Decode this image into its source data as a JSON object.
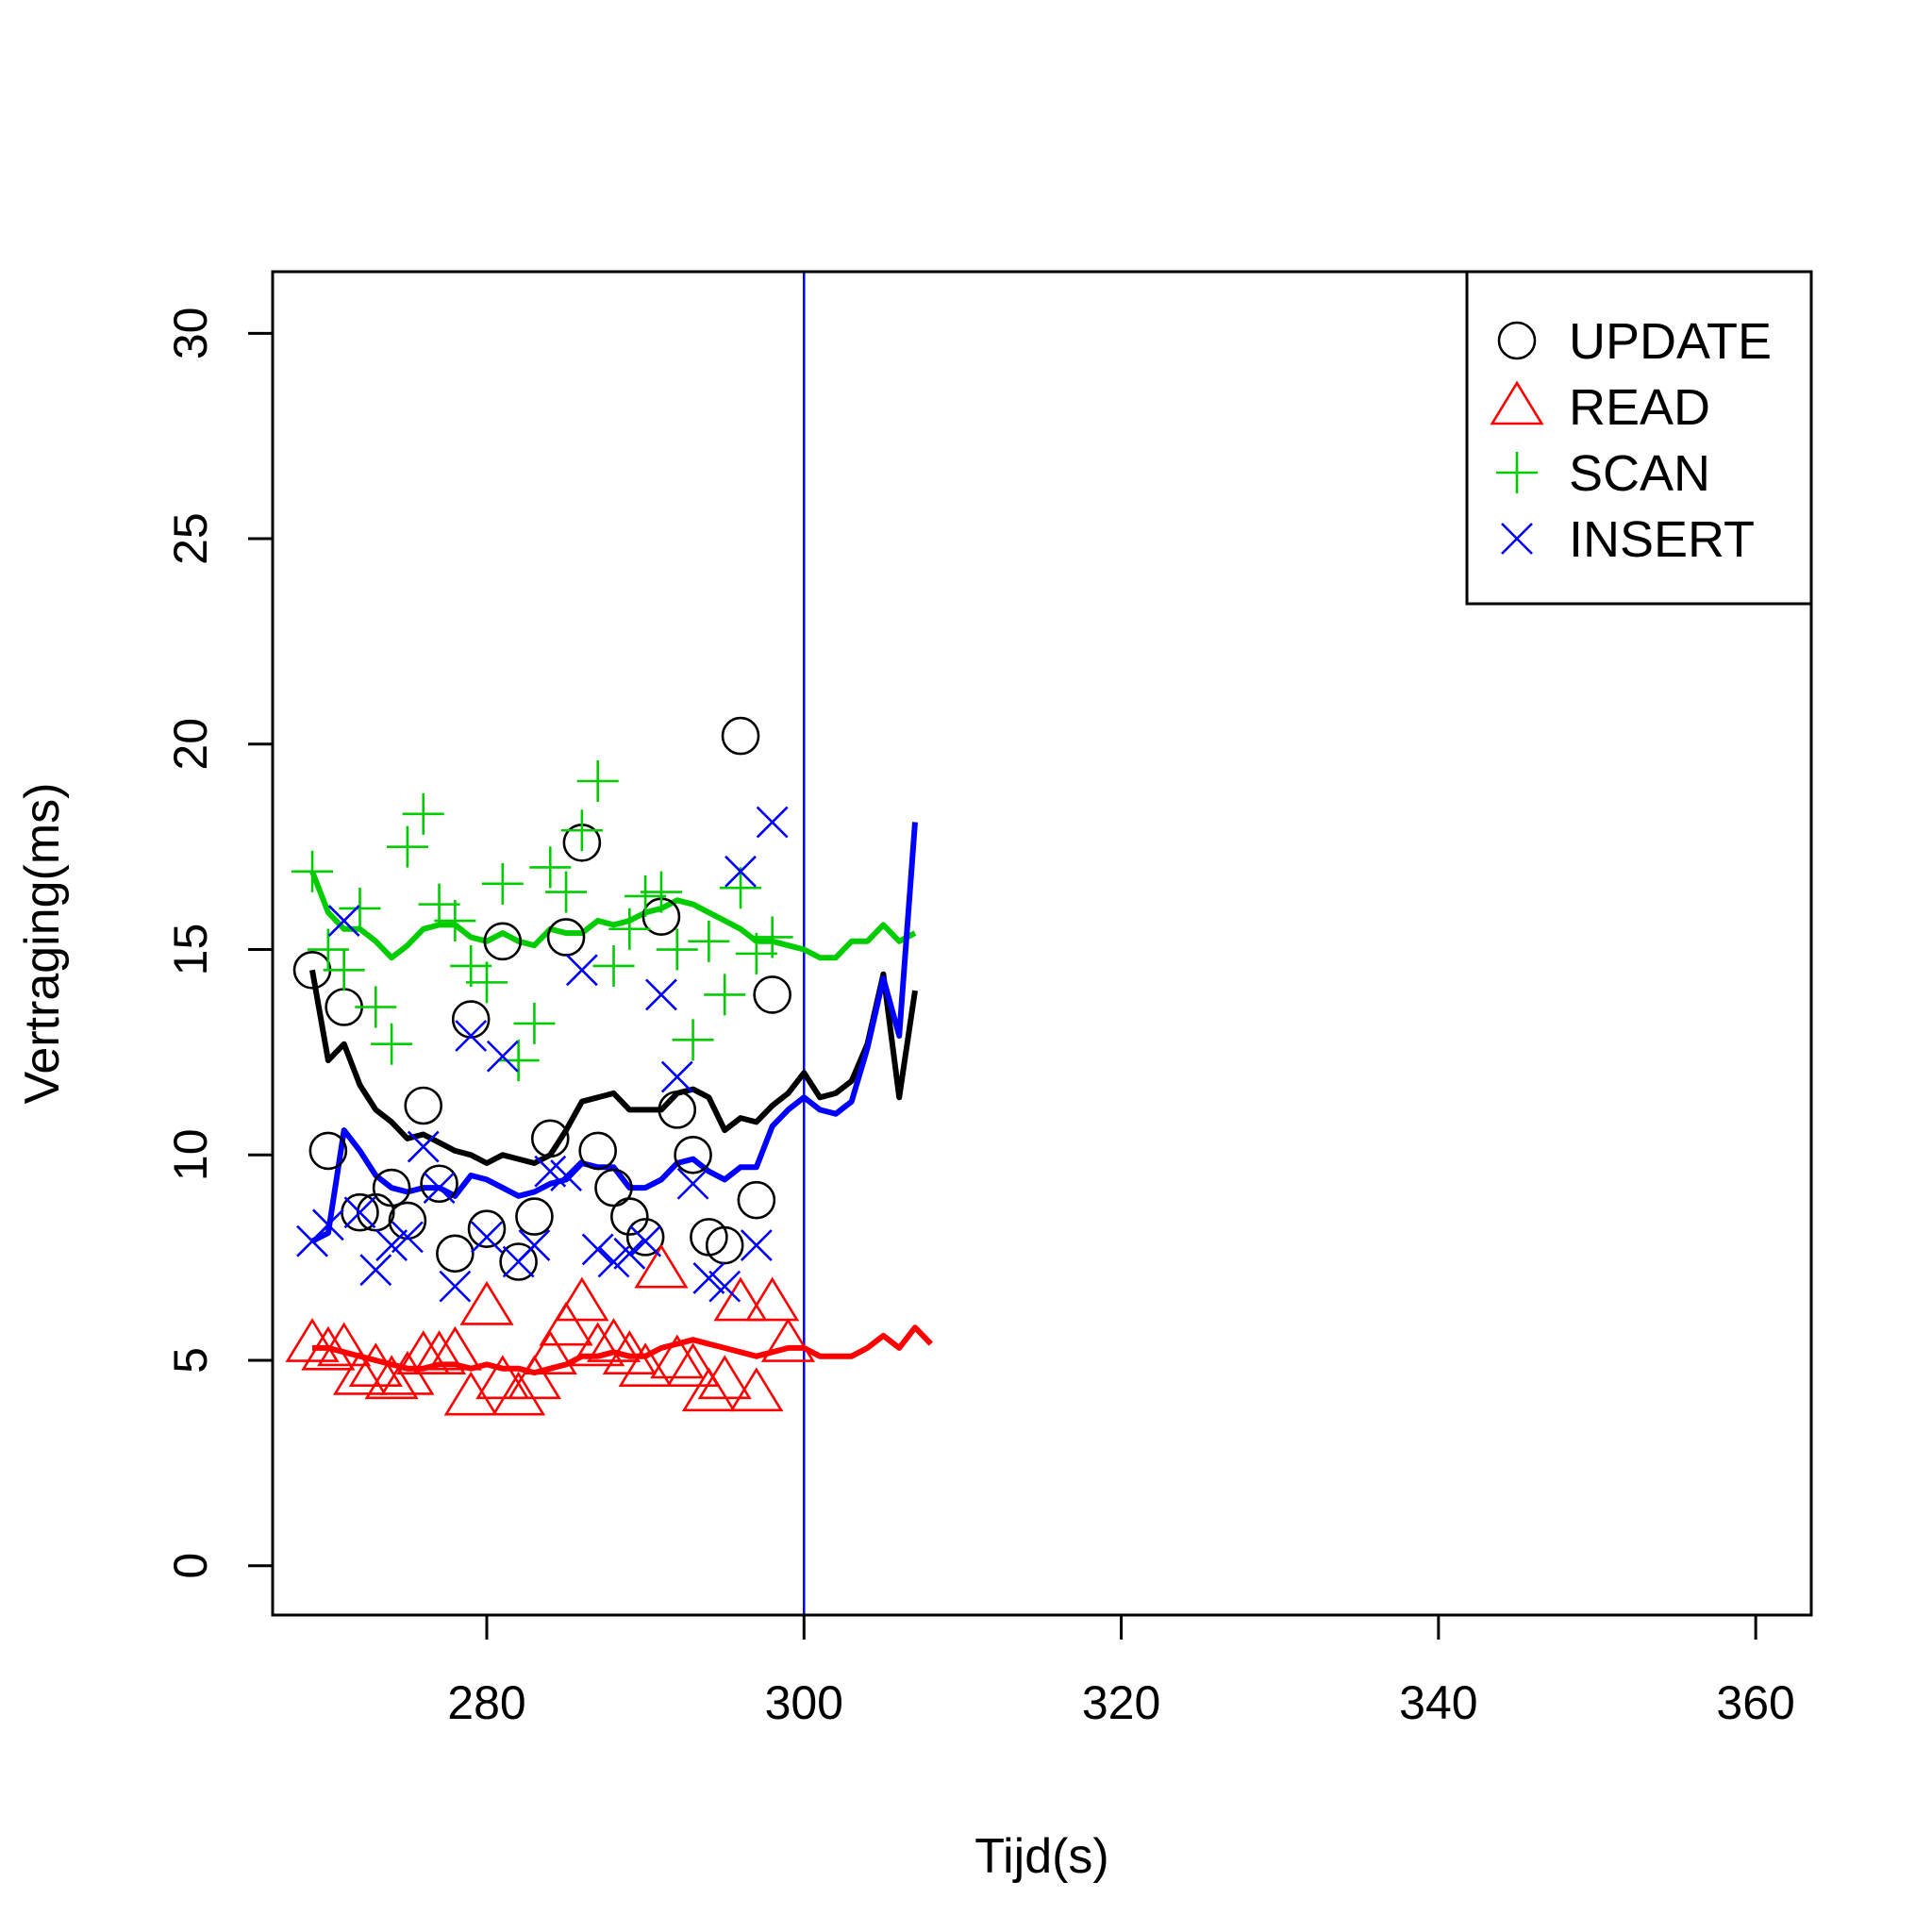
{
  "chart_data": {
    "type": "scatter",
    "title": "",
    "xlabel": "Tijd(s)",
    "ylabel": "Vertraging(ms)",
    "xlim": [
      266.5,
      363.5
    ],
    "ylim": [
      -1.2,
      31.5
    ],
    "xticks": [
      280,
      300,
      320,
      340,
      360
    ],
    "yticks": [
      0,
      5,
      10,
      15,
      20,
      25,
      30
    ],
    "vline": {
      "x": 300,
      "color": "#0000ff"
    },
    "legend": {
      "position": "top-right"
    },
    "series": [
      {
        "name": "UPDATE",
        "color": "#000000",
        "marker": "circle",
        "points": [
          [
            269,
            14.5
          ],
          [
            270,
            10.1
          ],
          [
            271,
            13.6
          ],
          [
            272,
            8.6
          ],
          [
            273,
            8.6
          ],
          [
            274,
            9.2
          ],
          [
            275,
            8.4
          ],
          [
            276,
            11.2
          ],
          [
            277,
            9.3
          ],
          [
            278,
            7.6
          ],
          [
            279,
            13.3
          ],
          [
            280,
            8.2
          ],
          [
            281,
            15.2
          ],
          [
            282,
            7.4
          ],
          [
            283,
            8.5
          ],
          [
            284,
            10.4
          ],
          [
            285,
            15.3
          ],
          [
            286,
            17.6
          ],
          [
            287,
            10.1
          ],
          [
            288,
            9.2
          ],
          [
            289,
            8.5
          ],
          [
            290,
            8.0
          ],
          [
            291,
            15.8
          ],
          [
            292,
            11.1
          ],
          [
            293,
            10.0
          ],
          [
            294,
            8.0
          ],
          [
            295,
            7.8
          ],
          [
            296,
            20.2
          ],
          [
            297,
            8.9
          ],
          [
            298,
            13.9
          ]
        ],
        "line": [
          [
            269,
            14.5
          ],
          [
            270,
            12.3
          ],
          [
            271,
            12.7
          ],
          [
            272,
            11.7
          ],
          [
            273,
            11.1
          ],
          [
            274,
            10.8
          ],
          [
            275,
            10.4
          ],
          [
            276,
            10.5
          ],
          [
            277,
            10.3
          ],
          [
            278,
            10.1
          ],
          [
            279,
            10.0
          ],
          [
            280,
            9.8
          ],
          [
            281,
            10.0
          ],
          [
            282,
            9.9
          ],
          [
            283,
            9.8
          ],
          [
            284,
            10.0
          ],
          [
            285,
            10.6
          ],
          [
            286,
            11.3
          ],
          [
            287,
            11.4
          ],
          [
            288,
            11.5
          ],
          [
            289,
            11.1
          ],
          [
            290,
            11.1
          ],
          [
            291,
            11.1
          ],
          [
            292,
            11.5
          ],
          [
            293,
            11.6
          ],
          [
            294,
            11.4
          ],
          [
            295,
            10.6
          ],
          [
            296,
            10.9
          ],
          [
            297,
            10.8
          ],
          [
            298,
            11.2
          ],
          [
            299,
            11.5
          ],
          [
            300,
            12.0
          ],
          [
            301,
            11.4
          ],
          [
            302,
            11.5
          ],
          [
            303,
            11.8
          ],
          [
            304,
            12.7
          ],
          [
            305,
            14.4
          ],
          [
            306,
            11.4
          ],
          [
            307,
            14.0
          ]
        ]
      },
      {
        "name": "READ",
        "color": "#ff0000",
        "marker": "triangle",
        "points": [
          [
            269,
            5.4
          ],
          [
            270,
            5.2
          ],
          [
            271,
            5.3
          ],
          [
            272,
            4.6
          ],
          [
            273,
            4.8
          ],
          [
            274,
            4.5
          ],
          [
            275,
            4.6
          ],
          [
            276,
            5.1
          ],
          [
            277,
            5.1
          ],
          [
            278,
            5.2
          ],
          [
            279,
            4.1
          ],
          [
            280,
            6.3
          ],
          [
            281,
            4.5
          ],
          [
            282,
            4.1
          ],
          [
            283,
            4.5
          ],
          [
            284,
            5.1
          ],
          [
            285,
            5.8
          ],
          [
            286,
            6.4
          ],
          [
            287,
            5.3
          ],
          [
            288,
            5.4
          ],
          [
            289,
            5.1
          ],
          [
            290,
            4.8
          ],
          [
            291,
            7.2
          ],
          [
            292,
            5.0
          ],
          [
            293,
            4.8
          ],
          [
            294,
            4.2
          ],
          [
            295,
            4.5
          ],
          [
            296,
            6.4
          ],
          [
            297,
            4.2
          ],
          [
            298,
            6.4
          ],
          [
            299,
            5.4
          ]
        ],
        "line": [
          [
            269,
            5.3
          ],
          [
            270,
            5.3
          ],
          [
            271,
            5.2
          ],
          [
            272,
            5.1
          ],
          [
            273,
            5.0
          ],
          [
            274,
            4.9
          ],
          [
            275,
            4.8
          ],
          [
            276,
            4.8
          ],
          [
            277,
            4.9
          ],
          [
            278,
            4.9
          ],
          [
            279,
            4.8
          ],
          [
            280,
            4.9
          ],
          [
            281,
            4.8
          ],
          [
            282,
            4.8
          ],
          [
            283,
            4.7
          ],
          [
            284,
            4.8
          ],
          [
            285,
            4.9
          ],
          [
            286,
            5.1
          ],
          [
            287,
            5.1
          ],
          [
            288,
            5.2
          ],
          [
            289,
            5.1
          ],
          [
            290,
            5.1
          ],
          [
            291,
            5.3
          ],
          [
            292,
            5.4
          ],
          [
            293,
            5.5
          ],
          [
            294,
            5.4
          ],
          [
            295,
            5.3
          ],
          [
            296,
            5.2
          ],
          [
            297,
            5.1
          ],
          [
            298,
            5.2
          ],
          [
            299,
            5.3
          ],
          [
            300,
            5.3
          ],
          [
            301,
            5.1
          ],
          [
            302,
            5.1
          ],
          [
            303,
            5.1
          ],
          [
            304,
            5.3
          ],
          [
            305,
            5.6
          ],
          [
            306,
            5.3
          ],
          [
            307,
            5.8
          ],
          [
            308,
            5.4
          ]
        ]
      },
      {
        "name": "SCAN",
        "color": "#00cc00",
        "marker": "plus",
        "points": [
          [
            269,
            16.9
          ],
          [
            270,
            15.0
          ],
          [
            271,
            14.5
          ],
          [
            272,
            16.0
          ],
          [
            273,
            13.6
          ],
          [
            274,
            12.7
          ],
          [
            275,
            17.5
          ],
          [
            276,
            18.3
          ],
          [
            277,
            16.1
          ],
          [
            278,
            15.7
          ],
          [
            279,
            14.6
          ],
          [
            280,
            14.2
          ],
          [
            281,
            16.6
          ],
          [
            282,
            12.3
          ],
          [
            283,
            13.2
          ],
          [
            284,
            17.0
          ],
          [
            285,
            16.4
          ],
          [
            286,
            17.9
          ],
          [
            287,
            19.1
          ],
          [
            288,
            14.6
          ],
          [
            289,
            15.5
          ],
          [
            290,
            16.3
          ],
          [
            291,
            16.4
          ],
          [
            292,
            15.0
          ],
          [
            293,
            12.8
          ],
          [
            294,
            15.2
          ],
          [
            295,
            13.9
          ],
          [
            296,
            16.5
          ],
          [
            297,
            14.9
          ],
          [
            298,
            15.3
          ]
        ],
        "line": [
          [
            269,
            16.9
          ],
          [
            270,
            15.9
          ],
          [
            271,
            15.5
          ],
          [
            272,
            15.5
          ],
          [
            273,
            15.2
          ],
          [
            274,
            14.8
          ],
          [
            275,
            15.1
          ],
          [
            276,
            15.5
          ],
          [
            277,
            15.6
          ],
          [
            278,
            15.6
          ],
          [
            279,
            15.3
          ],
          [
            280,
            15.2
          ],
          [
            281,
            15.4
          ],
          [
            282,
            15.2
          ],
          [
            283,
            15.1
          ],
          [
            284,
            15.5
          ],
          [
            285,
            15.4
          ],
          [
            286,
            15.4
          ],
          [
            287,
            15.7
          ],
          [
            288,
            15.6
          ],
          [
            289,
            15.7
          ],
          [
            290,
            15.9
          ],
          [
            291,
            16.0
          ],
          [
            292,
            16.2
          ],
          [
            293,
            16.1
          ],
          [
            294,
            15.9
          ],
          [
            295,
            15.7
          ],
          [
            296,
            15.5
          ],
          [
            297,
            15.2
          ],
          [
            298,
            15.2
          ],
          [
            299,
            15.1
          ],
          [
            300,
            15.0
          ],
          [
            301,
            14.8
          ],
          [
            302,
            14.8
          ],
          [
            303,
            15.2
          ],
          [
            304,
            15.2
          ],
          [
            305,
            15.6
          ],
          [
            306,
            15.2
          ],
          [
            307,
            15.4
          ]
        ]
      },
      {
        "name": "INSERT",
        "color": "#0000ff",
        "marker": "cross",
        "points": [
          [
            269,
            7.9
          ],
          [
            270,
            8.3
          ],
          [
            271,
            15.7
          ],
          [
            272,
            8.6
          ],
          [
            273,
            7.2
          ],
          [
            274,
            7.8
          ],
          [
            275,
            8.0
          ],
          [
            276,
            10.2
          ],
          [
            277,
            9.2
          ],
          [
            278,
            6.8
          ],
          [
            279,
            12.9
          ],
          [
            280,
            8.0
          ],
          [
            281,
            12.4
          ],
          [
            282,
            7.4
          ],
          [
            283,
            7.8
          ],
          [
            284,
            9.6
          ],
          [
            285,
            9.5
          ],
          [
            286,
            14.5
          ],
          [
            287,
            7.7
          ],
          [
            288,
            7.4
          ],
          [
            289,
            7.6
          ],
          [
            290,
            7.9
          ],
          [
            291,
            13.9
          ],
          [
            292,
            11.9
          ],
          [
            293,
            9.3
          ],
          [
            294,
            7.0
          ],
          [
            295,
            6.8
          ],
          [
            296,
            16.9
          ],
          [
            297,
            7.8
          ],
          [
            298,
            18.1
          ]
        ],
        "line": [
          [
            269,
            7.9
          ],
          [
            270,
            8.1
          ],
          [
            271,
            10.6
          ],
          [
            272,
            10.1
          ],
          [
            273,
            9.5
          ],
          [
            274,
            9.2
          ],
          [
            275,
            9.1
          ],
          [
            276,
            9.2
          ],
          [
            277,
            9.2
          ],
          [
            278,
            9.0
          ],
          [
            279,
            9.5
          ],
          [
            280,
            9.4
          ],
          [
            281,
            9.2
          ],
          [
            282,
            9.0
          ],
          [
            283,
            9.1
          ],
          [
            284,
            9.3
          ],
          [
            285,
            9.4
          ],
          [
            286,
            9.8
          ],
          [
            287,
            9.7
          ],
          [
            288,
            9.7
          ],
          [
            289,
            9.2
          ],
          [
            290,
            9.2
          ],
          [
            291,
            9.4
          ],
          [
            292,
            9.8
          ],
          [
            293,
            9.9
          ],
          [
            294,
            9.6
          ],
          [
            295,
            9.4
          ],
          [
            296,
            9.7
          ],
          [
            297,
            9.7
          ],
          [
            298,
            10.7
          ],
          [
            299,
            11.1
          ],
          [
            300,
            11.4
          ],
          [
            301,
            11.1
          ],
          [
            302,
            11.0
          ],
          [
            303,
            11.3
          ],
          [
            304,
            12.6
          ],
          [
            305,
            14.3
          ],
          [
            306,
            12.9
          ],
          [
            307,
            18.1
          ]
        ]
      }
    ]
  }
}
